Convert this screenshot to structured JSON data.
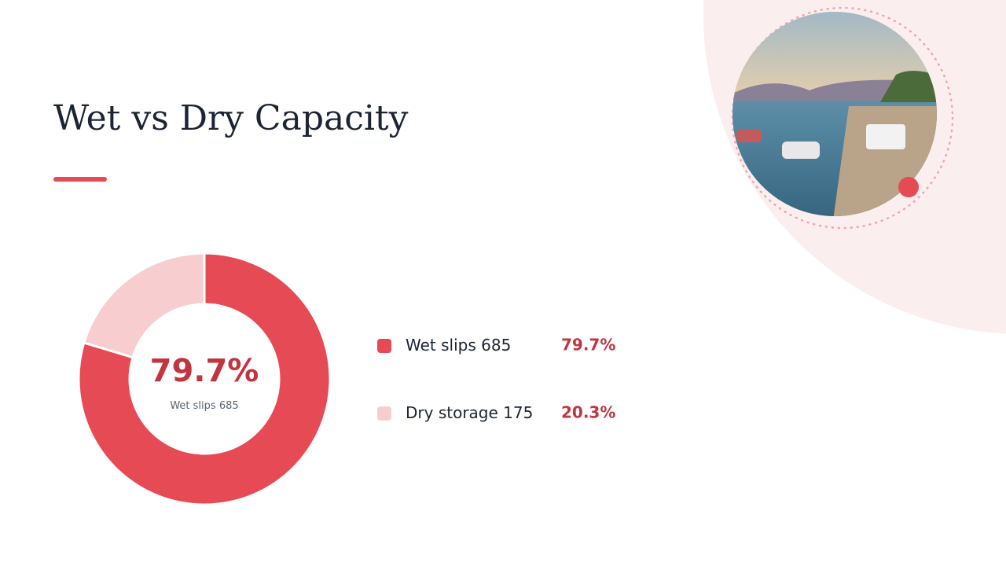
{
  "title": "Wet vs Dry Capacity",
  "chart_data": {
    "type": "donut",
    "categories": [
      "Wet slips",
      "Dry storage"
    ],
    "values": [
      685,
      175
    ],
    "colors": [
      "#e64a55",
      "#f7cdd0"
    ],
    "percentages": [
      79.7,
      20.3
    ],
    "percentage_labels": [
      "79.7%",
      "20.3%"
    ]
  }
}
